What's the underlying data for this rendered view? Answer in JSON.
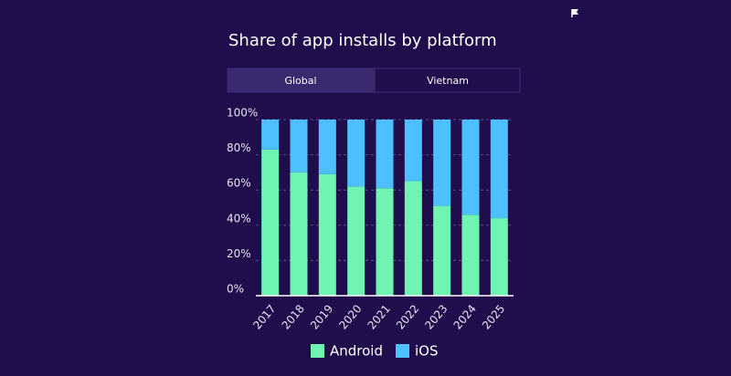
{
  "tabs": [
    "Global",
    "Vietnam"
  ],
  "chart_data": {
    "type": "stacked_bar",
    "title": "Share of app installs by platform",
    "categories": [
      "2017",
      "2018",
      "2019",
      "2020",
      "2021",
      "2022",
      "2023",
      "2024",
      "2025"
    ],
    "series": [
      {
        "name": "Android",
        "color": "#6ff5b1",
        "values": [
          83,
          70,
          69,
          62,
          61,
          65,
          51,
          46,
          44
        ]
      },
      {
        "name": "iOS",
        "color": "#4fc0ff",
        "values": [
          17,
          30,
          31,
          38,
          39,
          35,
          49,
          54,
          56
        ]
      }
    ],
    "ylim": [
      0,
      100
    ],
    "yticks": [
      {
        "value": 0,
        "label": "0%"
      },
      {
        "value": 20,
        "label": "20%"
      },
      {
        "value": 40,
        "label": "40%"
      },
      {
        "value": 60,
        "label": "60%"
      },
      {
        "value": 80,
        "label": "80%"
      },
      {
        "value": 100,
        "label": "100%"
      }
    ],
    "grid": true
  }
}
